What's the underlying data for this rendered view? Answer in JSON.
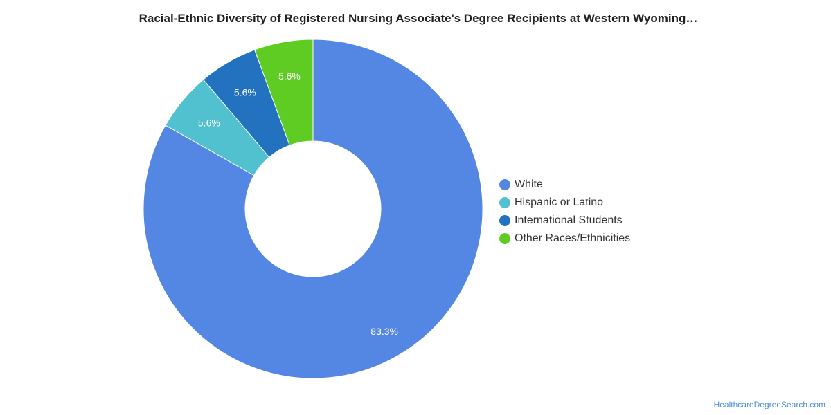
{
  "chart_data": {
    "type": "pie",
    "title": "Racial-Ethnic Diversity of Registered Nursing Associate's Degree Recipients at Western Wyoming…",
    "categories": [
      "White",
      "Hispanic or Latino",
      "International Students",
      "Other Races/Ethnicities"
    ],
    "values": [
      83.3,
      5.6,
      5.6,
      5.6
    ],
    "value_labels": [
      "83.3%",
      "5.6%",
      "5.6%",
      "5.6%"
    ],
    "colors": [
      "#5486e3",
      "#52c1cf",
      "#2272c0",
      "#5fcc24"
    ],
    "donut": true,
    "legend": "right"
  },
  "watermark": "HealthcareDegreeSearch.com"
}
